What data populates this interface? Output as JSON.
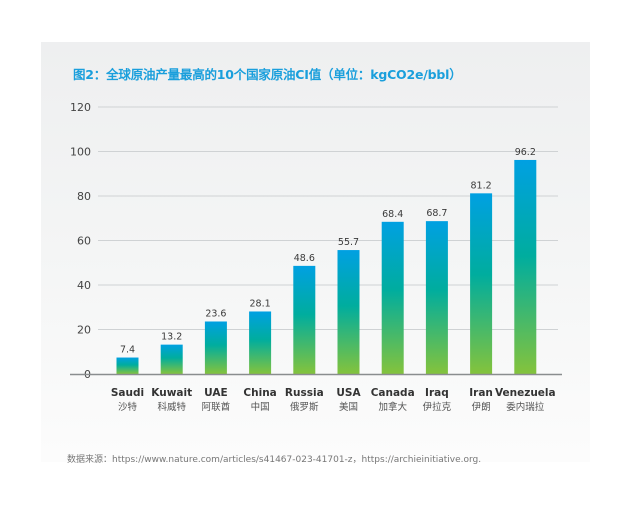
{
  "chart_data": {
    "type": "bar",
    "title": "图2：全球原油产量最高的10个国家原油CI值（单位：kgCO2e/bbl）",
    "xlabel": "",
    "ylabel": "",
    "ylim": [
      0,
      120
    ],
    "yticks": [
      0,
      20,
      40,
      60,
      80,
      100,
      120
    ],
    "grid": true,
    "legend": "none",
    "categories": [
      "Saudi",
      "Kuwait",
      "UAE",
      "China",
      "Russia",
      "USA",
      "Canada",
      "Iraq",
      "Iran",
      "Venezuela"
    ],
    "categories_cn": [
      "沙特",
      "科威特",
      "阿联酋",
      "中国",
      "俄罗斯",
      "美国",
      "加拿大",
      "伊拉克",
      "伊朗",
      "委内瑞拉"
    ],
    "values": [
      7.4,
      13.2,
      23.6,
      28.1,
      48.6,
      55.7,
      68.4,
      68.7,
      81.2,
      96.2
    ],
    "data_labels": [
      "7.4",
      "13.2",
      "23.6",
      "28.1",
      "48.6",
      "55.7",
      "68.4",
      "68.7",
      "81.2",
      "96.2"
    ]
  },
  "colors": {
    "title": "#1a9fdc",
    "bar_top": "#00a0e2",
    "bar_mid": "#00ad9e",
    "bar_bottom": "#84c33c",
    "grid": "#cfd2d4",
    "axis": "#8a8d8f",
    "tick_text": "#444444",
    "label_text": "#3a3a3a"
  },
  "source": "数据来源：https://www.nature.com/articles/s41467-023-41701-z，https://archieinitiative.org."
}
